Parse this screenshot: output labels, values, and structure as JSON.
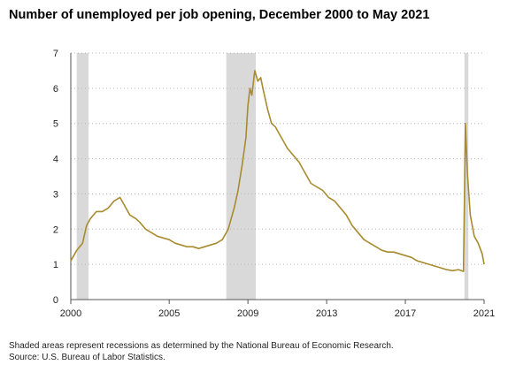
{
  "title": "Number of unemployed per job opening, December 2000 to May 2021",
  "footnote": "Shaded areas represent recessions as determined by the National Bureau of Economic Research.",
  "source": "Source: U.S. Bureau of Labor Statistics.",
  "colors": {
    "line": "#a88b2f",
    "recession": "#d9d9d9",
    "grid": "#b8b8b8"
  },
  "chart_data": {
    "type": "line",
    "title": "Number of unemployed per job opening, December 2000 to May 2021",
    "xlabel": "",
    "ylabel": "",
    "xlim": [
      2000.0,
      2021.0
    ],
    "ylim": [
      0,
      7
    ],
    "grid": "horizontal-dotted",
    "x_ticks": [
      2000,
      2005,
      2009,
      2013,
      2017,
      2021
    ],
    "y_ticks": [
      0,
      1,
      2,
      3,
      4,
      5,
      6,
      7
    ],
    "recessions": [
      [
        2000.3,
        2000.9
      ],
      [
        2007.9,
        2009.4
      ],
      [
        2020.0,
        2020.2
      ]
    ],
    "series": [
      {
        "x": [
          2000.0,
          2000.3,
          2000.6,
          2000.8,
          2001.0,
          2001.3,
          2001.6,
          2001.9,
          2002.2,
          2002.5,
          2002.8,
          2003.0,
          2003.3,
          2003.5,
          2003.8,
          2004.1,
          2004.4,
          2004.7,
          2005.0,
          2005.3,
          2005.6,
          2005.9,
          2006.2,
          2006.5,
          2006.8,
          2007.1,
          2007.4,
          2007.7,
          2008.0,
          2008.3,
          2008.5,
          2008.7,
          2008.9,
          2009.0,
          2009.1,
          2009.2,
          2009.35,
          2009.5,
          2009.65,
          2009.8,
          2010.0,
          2010.2,
          2010.4,
          2010.6,
          2010.8,
          2011.0,
          2011.3,
          2011.6,
          2011.9,
          2012.2,
          2012.5,
          2012.8,
          2013.1,
          2013.4,
          2013.7,
          2014.0,
          2014.3,
          2014.6,
          2014.9,
          2015.2,
          2015.5,
          2015.8,
          2016.1,
          2016.4,
          2016.7,
          2017.0,
          2017.3,
          2017.6,
          2017.9,
          2018.2,
          2018.5,
          2018.8,
          2019.1,
          2019.4,
          2019.7,
          2019.95,
          2020.05,
          2020.15,
          2020.3,
          2020.5,
          2020.7,
          2020.9,
          2021.0
        ],
        "values": [
          1.1,
          1.4,
          1.6,
          2.1,
          2.3,
          2.5,
          2.5,
          2.6,
          2.8,
          2.9,
          2.6,
          2.4,
          2.3,
          2.2,
          2.0,
          1.9,
          1.8,
          1.75,
          1.7,
          1.6,
          1.55,
          1.5,
          1.5,
          1.45,
          1.5,
          1.55,
          1.6,
          1.7,
          2.0,
          2.6,
          3.1,
          3.8,
          4.6,
          5.5,
          6.0,
          5.8,
          6.5,
          6.2,
          6.3,
          5.9,
          5.4,
          5.0,
          4.9,
          4.7,
          4.5,
          4.3,
          4.1,
          3.9,
          3.6,
          3.3,
          3.2,
          3.1,
          2.9,
          2.8,
          2.6,
          2.4,
          2.1,
          1.9,
          1.7,
          1.6,
          1.5,
          1.4,
          1.35,
          1.35,
          1.3,
          1.25,
          1.2,
          1.1,
          1.05,
          1.0,
          0.95,
          0.9,
          0.85,
          0.82,
          0.85,
          0.8,
          5.0,
          3.6,
          2.4,
          1.8,
          1.6,
          1.3,
          1.0
        ]
      }
    ]
  }
}
